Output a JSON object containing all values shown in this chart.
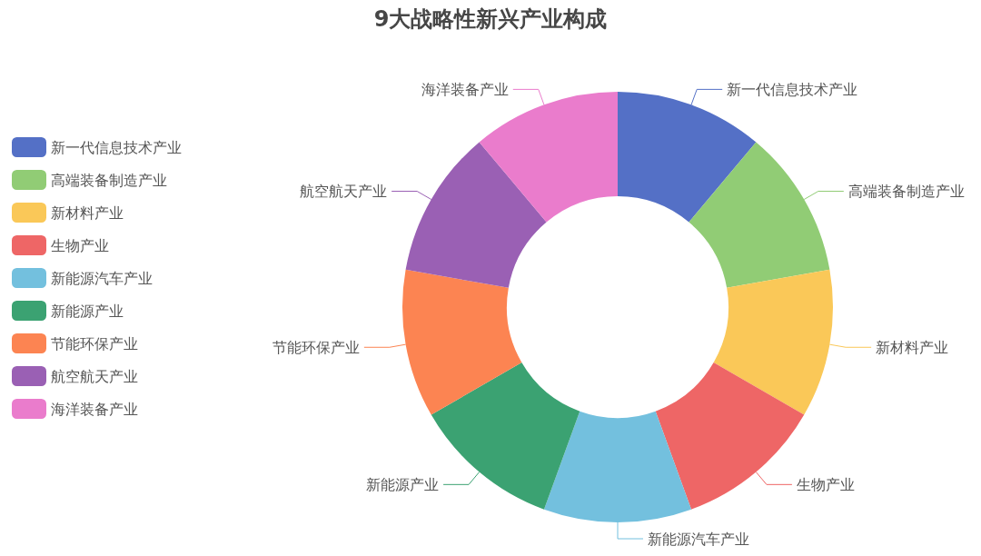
{
  "chart_data": {
    "type": "donut",
    "title": "9大战略性新兴产业构成",
    "categories": [
      "新一代信息技术产业",
      "高端装备制造产业",
      "新材料产业",
      "生物产业",
      "新能源汽车产业",
      "新能源产业",
      "节能环保产业",
      "航空航天产业",
      "海洋装备产业"
    ],
    "values": [
      11.11,
      11.11,
      11.11,
      11.11,
      11.11,
      11.11,
      11.11,
      11.11,
      11.11
    ],
    "colors": [
      "#5470c6",
      "#91cc75",
      "#fac858",
      "#ee6666",
      "#73c0de",
      "#3ba272",
      "#fc8452",
      "#9a60b4",
      "#ea7ccc"
    ],
    "legend": "left"
  }
}
